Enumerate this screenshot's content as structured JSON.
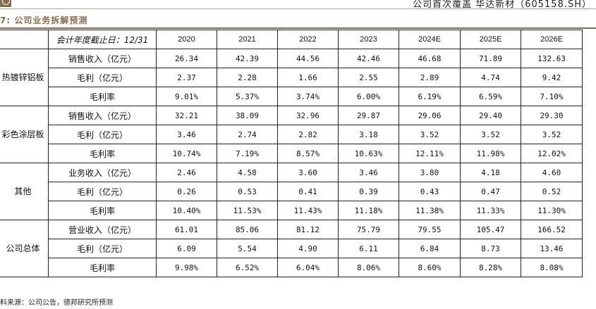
{
  "header": {
    "text": "公司首次覆盖  华达新材（605158.SH）"
  },
  "table_title": "7: 公司业务拆解预测",
  "table": {
    "header_label": "会计年度截止日：12/31",
    "years": [
      "2020",
      "2021",
      "2022",
      "2023",
      "2024E",
      "2025E",
      "2026E"
    ],
    "segments": [
      {
        "name": "热镀锌铝板",
        "rows": [
          {
            "label": "销售收入（亿元）",
            "values": [
              "26.34",
              "42.39",
              "44.56",
              "42.46",
              "46.68",
              "71.89",
              "132.63"
            ]
          },
          {
            "label": "毛利（亿元）",
            "values": [
              "2.37",
              "2.28",
              "1.66",
              "2.55",
              "2.89",
              "4.74",
              "9.42"
            ]
          },
          {
            "label": "毛利率",
            "values": [
              "9.01%",
              "5.37%",
              "3.74%",
              "6.00%",
              "6.19%",
              "6.59%",
              "7.10%"
            ]
          }
        ]
      },
      {
        "name": "彩色涂层板",
        "rows": [
          {
            "label": "销售收入（亿元）",
            "values": [
              "32.21",
              "38.09",
              "32.96",
              "29.87",
              "29.06",
              "29.40",
              "29.30"
            ]
          },
          {
            "label": "毛利（亿元）",
            "values": [
              "3.46",
              "2.74",
              "2.82",
              "3.18",
              "3.52",
              "3.52",
              "3.52"
            ]
          },
          {
            "label": "毛利率",
            "values": [
              "10.74%",
              "7.19%",
              "8.57%",
              "10.63%",
              "12.11%",
              "11.98%",
              "12.02%"
            ]
          }
        ]
      },
      {
        "name": "其他",
        "rows": [
          {
            "label": "业务收入（亿元）",
            "values": [
              "2.46",
              "4.58",
              "3.60",
              "3.46",
              "3.80",
              "4.18",
              "4.60"
            ]
          },
          {
            "label": "毛利（亿元）",
            "values": [
              "0.26",
              "0.53",
              "0.41",
              "0.39",
              "0.43",
              "0.47",
              "0.52"
            ]
          },
          {
            "label": "毛利率",
            "values": [
              "10.40%",
              "11.53%",
              "11.43%",
              "11.18%",
              "11.38%",
              "11.33%",
              "11.30%"
            ]
          }
        ]
      },
      {
        "name": "公司总体",
        "rows": [
          {
            "label": "营业收入（亿元）",
            "values": [
              "61.01",
              "85.06",
              "81.12",
              "75.79",
              "79.55",
              "105.47",
              "166.52"
            ]
          },
          {
            "label": "毛利（亿元）",
            "values": [
              "6.09",
              "5.54",
              "4.90",
              "6.11",
              "6.84",
              "8.73",
              "13.46"
            ]
          },
          {
            "label": "毛利率",
            "values": [
              "9.98%",
              "6.52%",
              "6.04%",
              "8.06%",
              "8.60%",
              "8.28%",
              "8.08%"
            ]
          }
        ]
      }
    ]
  },
  "source_note": "料来源：公司公告，德邦研究所预测"
}
